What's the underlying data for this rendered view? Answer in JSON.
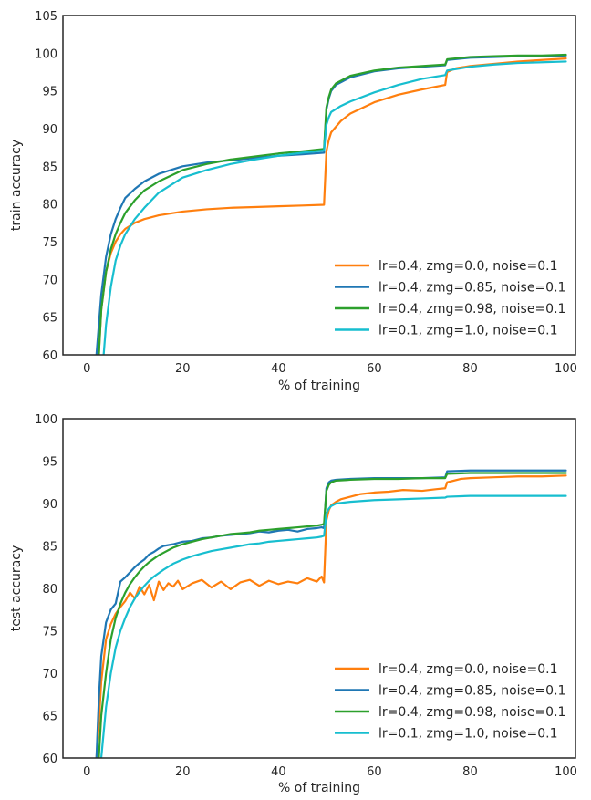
{
  "chart_data": [
    {
      "type": "line",
      "xlabel": "% of training",
      "ylabel": "train accuracy",
      "xlim": [
        -5,
        102
      ],
      "ylim": [
        60,
        105
      ],
      "xticks": [
        0,
        20,
        40,
        60,
        80,
        100
      ],
      "yticks": [
        60,
        65,
        70,
        75,
        80,
        85,
        90,
        95,
        100,
        105
      ],
      "grid": false,
      "legend_position": "bottom-right",
      "series": [
        {
          "name": "lr=0.4, zmg=0.0, noise=0.1",
          "color": "#ff7f0e",
          "x": [
            2.5,
            3,
            4,
            5,
            6,
            7,
            8,
            10,
            12,
            15,
            20,
            25,
            30,
            35,
            40,
            45,
            49.5,
            50,
            50.5,
            51,
            53,
            55,
            60,
            65,
            70,
            74.8,
            75.2,
            77,
            80,
            85,
            90,
            95,
            100
          ],
          "y": [
            60,
            66,
            71,
            73.5,
            75,
            76,
            76.7,
            77.5,
            78,
            78.5,
            79,
            79.3,
            79.5,
            79.6,
            79.7,
            79.8,
            79.9,
            87,
            88.5,
            89.5,
            91,
            92,
            93.5,
            94.5,
            95.2,
            95.8,
            97.5,
            98,
            98.3,
            98.6,
            98.9,
            99.1,
            99.3
          ]
        },
        {
          "name": "lr=0.4, zmg=0.85, noise=0.1",
          "color": "#1f77b4",
          "x": [
            2,
            3,
            4,
            5,
            6,
            7,
            8,
            10,
            12,
            15,
            20,
            25,
            30,
            35,
            40,
            45,
            49.5,
            50,
            50.5,
            51,
            52,
            55,
            60,
            65,
            70,
            74.8,
            75.2,
            80,
            85,
            90,
            95,
            100
          ],
          "y": [
            60,
            68,
            73,
            76,
            78,
            79.5,
            80.8,
            82,
            83,
            84,
            85,
            85.5,
            85.8,
            86.1,
            86.4,
            86.6,
            86.8,
            92.5,
            94,
            95,
            95.8,
            96.8,
            97.6,
            98,
            98.2,
            98.4,
            99.1,
            99.4,
            99.5,
            99.6,
            99.6,
            99.7
          ]
        },
        {
          "name": "lr=0.4, zmg=0.98, noise=0.1",
          "color": "#2ca02c",
          "x": [
            2.5,
            3,
            4,
            5,
            6,
            7,
            8,
            10,
            12,
            15,
            20,
            25,
            30,
            35,
            40,
            45,
            49.5,
            50,
            50.5,
            51,
            52,
            55,
            60,
            65,
            70,
            74.8,
            75.2,
            80,
            85,
            90,
            95,
            100
          ],
          "y": [
            60,
            66,
            71,
            74,
            76,
            77.5,
            78.8,
            80.5,
            81.8,
            83,
            84.5,
            85.3,
            85.9,
            86.3,
            86.7,
            87,
            87.3,
            92.8,
            94.2,
            95.2,
            96,
            97,
            97.7,
            98.1,
            98.3,
            98.5,
            99.2,
            99.5,
            99.6,
            99.7,
            99.7,
            99.8
          ]
        },
        {
          "name": "lr=0.1, zmg=1.0, noise=0.1",
          "color": "#17becf",
          "x": [
            3.5,
            4,
            5,
            6,
            7,
            8,
            10,
            12,
            15,
            20,
            25,
            30,
            35,
            40,
            45,
            49.5,
            50,
            50.5,
            51,
            53,
            55,
            60,
            65,
            70,
            74.8,
            75.2,
            80,
            85,
            90,
            95,
            100
          ],
          "y": [
            60,
            64,
            69,
            72.5,
            74.5,
            76,
            78,
            79.5,
            81.5,
            83.5,
            84.5,
            85.3,
            85.9,
            86.4,
            86.8,
            87.1,
            90.5,
            91.5,
            92.2,
            93,
            93.6,
            94.8,
            95.8,
            96.6,
            97.1,
            97.7,
            98.2,
            98.5,
            98.7,
            98.8,
            98.9
          ]
        }
      ]
    },
    {
      "type": "line",
      "xlabel": "% of training",
      "ylabel": "test accuracy",
      "xlim": [
        -5,
        102
      ],
      "ylim": [
        60,
        100
      ],
      "xticks": [
        0,
        20,
        40,
        60,
        80,
        100
      ],
      "yticks": [
        60,
        65,
        70,
        75,
        80,
        85,
        90,
        95,
        100
      ],
      "grid": false,
      "legend_position": "bottom-right",
      "series": [
        {
          "name": "lr=0.4, zmg=0.0, noise=0.1",
          "color": "#ff7f0e",
          "x": [
            2,
            2.5,
            3,
            4,
            5,
            6,
            7,
            8,
            9,
            10,
            11,
            12,
            13,
            14,
            15,
            16,
            17,
            18,
            19,
            20,
            22,
            24,
            26,
            28,
            30,
            32,
            34,
            36,
            38,
            40,
            42,
            44,
            46,
            48,
            49,
            49.5,
            50,
            50.5,
            51,
            52,
            53,
            55,
            57,
            60,
            63,
            66,
            70,
            73,
            74.8,
            75.2,
            78,
            80,
            85,
            90,
            95,
            100
          ],
          "y": [
            60,
            64,
            69,
            74,
            75.8,
            77,
            77.8,
            78.5,
            79.5,
            78.8,
            80.2,
            79.3,
            80.4,
            78.6,
            80.8,
            79.8,
            80.6,
            80.2,
            80.9,
            79.9,
            80.6,
            81,
            80.1,
            80.8,
            79.9,
            80.7,
            81,
            80.3,
            80.9,
            80.5,
            80.8,
            80.6,
            81.2,
            80.8,
            81.4,
            80.7,
            88,
            89.2,
            89.8,
            90.2,
            90.5,
            90.8,
            91.1,
            91.3,
            91.4,
            91.6,
            91.5,
            91.7,
            91.8,
            92.5,
            92.9,
            93,
            93.1,
            93.2,
            93.2,
            93.3
          ]
        },
        {
          "name": "lr=0.4, zmg=0.85, noise=0.1",
          "color": "#1f77b4",
          "x": [
            2,
            2.5,
            3,
            4,
            5,
            6,
            7,
            8,
            9,
            10,
            11,
            12,
            13,
            14,
            15,
            16,
            18,
            20,
            22,
            24,
            26,
            28,
            30,
            32,
            34,
            36,
            38,
            40,
            42,
            44,
            46,
            48,
            49,
            49.5,
            50,
            50.5,
            51,
            52,
            55,
            60,
            65,
            70,
            74.8,
            75.2,
            80,
            85,
            90,
            95,
            100
          ],
          "y": [
            60,
            67,
            72,
            76,
            77.5,
            78.2,
            80.8,
            81.3,
            81.9,
            82.5,
            83,
            83.4,
            84,
            84.3,
            84.7,
            85,
            85.2,
            85.5,
            85.6,
            85.9,
            86,
            86.2,
            86.3,
            86.4,
            86.5,
            86.7,
            86.6,
            86.8,
            86.9,
            86.7,
            87,
            87.1,
            87.2,
            87.1,
            91.8,
            92.5,
            92.7,
            92.8,
            92.9,
            93,
            93,
            93,
            93.1,
            93.8,
            93.9,
            93.9,
            93.9,
            93.9,
            93.9
          ]
        },
        {
          "name": "lr=0.4, zmg=0.98, noise=0.1",
          "color": "#2ca02c",
          "x": [
            2.5,
            3,
            4,
            5,
            6,
            7,
            8,
            9,
            10,
            11,
            12,
            13,
            14,
            15,
            16,
            18,
            20,
            22,
            24,
            26,
            28,
            30,
            32,
            34,
            36,
            38,
            40,
            42,
            44,
            46,
            48,
            49,
            49.5,
            50,
            50.5,
            51,
            52,
            55,
            60,
            65,
            70,
            74.8,
            75.2,
            80,
            85,
            90,
            95,
            100
          ],
          "y": [
            60,
            65,
            70,
            74,
            76.5,
            78.2,
            79.5,
            80.5,
            81.3,
            82,
            82.6,
            83.1,
            83.5,
            83.9,
            84.2,
            84.8,
            85.2,
            85.5,
            85.8,
            86,
            86.2,
            86.4,
            86.5,
            86.6,
            86.8,
            86.9,
            87,
            87.1,
            87.2,
            87.3,
            87.4,
            87.5,
            87.6,
            91.5,
            92.2,
            92.5,
            92.7,
            92.8,
            92.9,
            92.9,
            93,
            93,
            93.5,
            93.6,
            93.6,
            93.6,
            93.6,
            93.6
          ]
        },
        {
          "name": "lr=0.1, zmg=1.0, noise=0.1",
          "color": "#17becf",
          "x": [
            3,
            3.5,
            4,
            5,
            6,
            7,
            8,
            9,
            10,
            11,
            12,
            13,
            14,
            15,
            16,
            18,
            20,
            22,
            24,
            26,
            28,
            30,
            32,
            34,
            36,
            38,
            40,
            42,
            44,
            46,
            48,
            49,
            49.5,
            50,
            50.5,
            51,
            52,
            55,
            60,
            65,
            70,
            74.8,
            75.2,
            80,
            85,
            90,
            95,
            100
          ],
          "y": [
            60,
            63,
            66,
            70,
            73,
            75,
            76.5,
            77.8,
            78.8,
            79.6,
            80.3,
            80.9,
            81.4,
            81.8,
            82.2,
            82.9,
            83.4,
            83.8,
            84.1,
            84.4,
            84.6,
            84.8,
            85,
            85.2,
            85.3,
            85.5,
            85.6,
            85.7,
            85.8,
            85.9,
            86,
            86.1,
            86.2,
            88.8,
            89.4,
            89.7,
            90,
            90.2,
            90.4,
            90.5,
            90.6,
            90.7,
            90.8,
            90.9,
            90.9,
            90.9,
            90.9,
            90.9
          ]
        }
      ]
    }
  ]
}
